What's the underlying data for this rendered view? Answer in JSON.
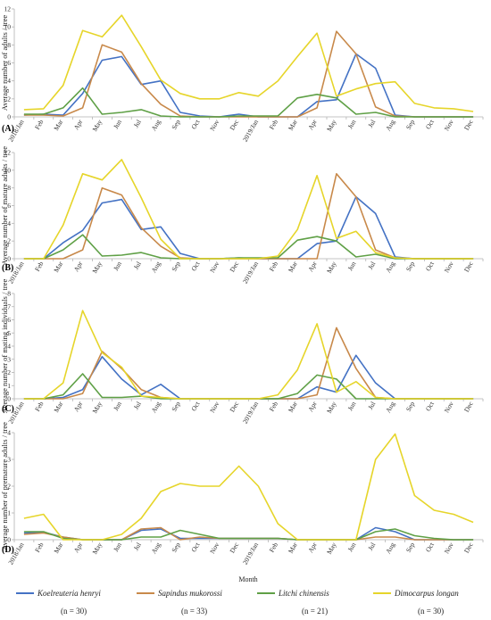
{
  "colors": {
    "koelreuteria": "#4472C4",
    "sapindus": "#C8894A",
    "litchi": "#5FA046",
    "dimocarpus": "#E6D52A",
    "axis": "#b3b3b3"
  },
  "months": [
    "2018/Jan",
    "Feb",
    "Mar",
    "Apr",
    "May",
    "Jun",
    "Jul",
    "Aug",
    "Sep",
    "Oct",
    "Nov",
    "Dec",
    "2019/Jan",
    "Feb",
    "Mar",
    "Apr",
    "May",
    "Jun",
    "Jul",
    "Aug",
    "Sep",
    "Oct",
    "Nov",
    "Dec"
  ],
  "xaxis_title": "Month",
  "legend": [
    {
      "name": "Koelreuteria henryi",
      "n": "(n = 30)",
      "color_key": "koelreuteria"
    },
    {
      "name": "Sapindus mukorossi",
      "n": "(n = 33)",
      "color_key": "sapindus"
    },
    {
      "name": "Litchi chinensis",
      "n": "(n = 21)",
      "color_key": "litchi"
    },
    {
      "name": "Dimocarpus longan",
      "n": "(n = 30)",
      "color_key": "dimocarpus"
    }
  ],
  "chart_data": [
    {
      "type": "line",
      "panel": "(A)",
      "ylabel": "Average number of adults / tree",
      "ylim": [
        0,
        12
      ],
      "yticks": [
        0,
        2,
        4,
        6,
        8,
        10,
        12
      ],
      "grid": false,
      "series": [
        {
          "name": "Koelreuteria henryi",
          "color_key": "koelreuteria",
          "values": [
            0.2,
            0.3,
            0.2,
            2.6,
            6.3,
            6.7,
            3.6,
            4.0,
            0.5,
            0.1,
            0.0,
            0.3,
            0.0,
            0.0,
            0.0,
            1.7,
            1.9,
            7.0,
            5.4,
            0.2,
            0.0,
            0.0,
            0.0,
            0.0
          ]
        },
        {
          "name": "Sapindus mukorossi",
          "color_key": "sapindus",
          "values": [
            0.2,
            0.2,
            0.1,
            1.0,
            8.0,
            7.2,
            3.7,
            1.4,
            0.1,
            0.0,
            0.0,
            0.0,
            0.0,
            0.0,
            0.0,
            1.0,
            9.5,
            7.0,
            1.1,
            0.1,
            0.0,
            0.0,
            0.0,
            0.0
          ]
        },
        {
          "name": "Litchi chinensis",
          "color_key": "litchi",
          "values": [
            0.3,
            0.3,
            1.0,
            3.2,
            0.3,
            0.5,
            0.8,
            0.1,
            0.0,
            0.0,
            0.0,
            0.1,
            0.1,
            0.1,
            2.1,
            2.5,
            2.1,
            0.3,
            0.5,
            0.0,
            0.0,
            0.0,
            0.0,
            0.0
          ]
        },
        {
          "name": "Dimocarpus longan",
          "color_key": "dimocarpus",
          "values": [
            0.8,
            0.9,
            3.5,
            9.6,
            8.9,
            11.3,
            7.8,
            4.1,
            2.6,
            2.0,
            2.0,
            2.7,
            2.3,
            4.0,
            6.7,
            9.3,
            2.3,
            3.1,
            3.7,
            3.9,
            1.5,
            1.0,
            0.9,
            0.6
          ]
        }
      ]
    },
    {
      "type": "line",
      "panel": "(B)",
      "ylabel": "Average number of mature adults / tree",
      "ylim": [
        0,
        12
      ],
      "yticks": [
        0,
        2,
        4,
        6,
        8,
        10,
        12
      ],
      "grid": false,
      "series": [
        {
          "name": "Koelreuteria henryi",
          "color_key": "koelreuteria",
          "values": [
            0.0,
            0.0,
            1.8,
            3.2,
            6.3,
            6.7,
            3.3,
            3.6,
            0.6,
            0.0,
            0.0,
            0.1,
            0.0,
            0.0,
            0.0,
            1.7,
            2.0,
            7.0,
            5.1,
            0.2,
            0.0,
            0.0,
            0.0,
            0.0
          ]
        },
        {
          "name": "Sapindus mukorossi",
          "color_key": "sapindus",
          "values": [
            0.0,
            0.0,
            0.0,
            1.0,
            8.0,
            7.2,
            3.5,
            1.4,
            0.1,
            0.0,
            0.0,
            0.0,
            0.0,
            0.0,
            0.0,
            0.0,
            9.6,
            7.0,
            1.0,
            0.1,
            0.0,
            0.0,
            0.0,
            0.0
          ]
        },
        {
          "name": "Litchi chinensis",
          "color_key": "litchi",
          "values": [
            0.0,
            0.0,
            1.0,
            2.7,
            0.3,
            0.4,
            0.7,
            0.1,
            0.0,
            0.0,
            0.0,
            0.1,
            0.1,
            0.1,
            2.1,
            2.5,
            2.0,
            0.2,
            0.5,
            0.0,
            0.0,
            0.0,
            0.0,
            0.0
          ]
        },
        {
          "name": "Dimocarpus longan",
          "color_key": "dimocarpus",
          "values": [
            0.0,
            0.0,
            3.8,
            9.6,
            8.9,
            11.2,
            6.9,
            2.2,
            0.0,
            0.0,
            0.0,
            0.0,
            0.0,
            0.3,
            3.3,
            9.4,
            2.3,
            3.1,
            0.7,
            0.1,
            0.0,
            0.0,
            0.0,
            0.0
          ]
        }
      ]
    },
    {
      "type": "line",
      "panel": "(C)",
      "ylabel": "Average number of mating individuals / tree",
      "ylim": [
        0,
        8
      ],
      "yticks": [
        0,
        1,
        2,
        3,
        4,
        5,
        6,
        7,
        8
      ],
      "grid": false,
      "series": [
        {
          "name": "Koelreuteria henryi",
          "color_key": "koelreuteria",
          "values": [
            0.0,
            0.0,
            0.1,
            0.7,
            3.2,
            1.5,
            0.3,
            1.1,
            0.0,
            0.0,
            0.0,
            0.0,
            0.0,
            0.0,
            0.0,
            0.9,
            0.5,
            3.3,
            1.2,
            0.0,
            0.0,
            0.0,
            0.0,
            0.0
          ]
        },
        {
          "name": "Sapindus mukorossi",
          "color_key": "sapindus",
          "values": [
            0.0,
            0.0,
            0.0,
            0.4,
            3.6,
            2.3,
            0.7,
            0.1,
            0.0,
            0.0,
            0.0,
            0.0,
            0.0,
            0.0,
            0.0,
            0.3,
            5.4,
            2.3,
            0.1,
            0.0,
            0.0,
            0.0,
            0.0,
            0.0
          ]
        },
        {
          "name": "Litchi chinensis",
          "color_key": "litchi",
          "values": [
            0.0,
            0.0,
            0.3,
            1.9,
            0.1,
            0.1,
            0.2,
            0.0,
            0.0,
            0.0,
            0.0,
            0.0,
            0.0,
            0.0,
            0.4,
            1.8,
            1.5,
            0.0,
            0.0,
            0.0,
            0.0,
            0.0,
            0.0,
            0.0
          ]
        },
        {
          "name": "Dimocarpus longan",
          "color_key": "dimocarpus",
          "values": [
            0.0,
            0.0,
            1.2,
            6.7,
            3.5,
            2.4,
            0.2,
            0.1,
            0.0,
            0.0,
            0.0,
            0.0,
            0.0,
            0.3,
            2.2,
            5.7,
            0.5,
            1.3,
            0.1,
            0.0,
            0.0,
            0.0,
            0.0,
            0.0
          ]
        }
      ]
    },
    {
      "type": "line",
      "panel": "(D)",
      "ylabel": "Average number of premature adults / tree",
      "ylim": [
        0,
        4
      ],
      "yticks": [
        0,
        1,
        2,
        3,
        4
      ],
      "grid": false,
      "series": [
        {
          "name": "Koelreuteria henryi",
          "color_key": "koelreuteria",
          "values": [
            0.25,
            0.28,
            0.1,
            0.0,
            0.0,
            0.0,
            0.35,
            0.4,
            0.05,
            0.05,
            0.05,
            0.05,
            0.05,
            0.05,
            0.0,
            0.0,
            0.0,
            0.0,
            0.45,
            0.3,
            0.0,
            0.0,
            0.0,
            0.0
          ]
        },
        {
          "name": "Sapindus mukorossi",
          "color_key": "sapindus",
          "values": [
            0.2,
            0.25,
            0.1,
            0.0,
            0.0,
            0.0,
            0.4,
            0.45,
            0.0,
            0.1,
            0.05,
            0.05,
            0.05,
            0.05,
            0.0,
            0.0,
            0.0,
            0.0,
            0.1,
            0.1,
            0.0,
            0.0,
            0.0,
            0.0
          ]
        },
        {
          "name": "Litchi chinensis",
          "color_key": "litchi",
          "values": [
            0.3,
            0.3,
            0.05,
            0.0,
            0.0,
            0.0,
            0.1,
            0.1,
            0.35,
            0.2,
            0.05,
            0.05,
            0.05,
            0.05,
            0.0,
            0.0,
            0.0,
            0.0,
            0.3,
            0.4,
            0.15,
            0.05,
            0.0,
            0.0
          ]
        },
        {
          "name": "Dimocarpus longan",
          "color_key": "dimocarpus",
          "values": [
            0.8,
            0.95,
            0.0,
            0.0,
            0.0,
            0.2,
            0.8,
            1.8,
            2.1,
            2.0,
            2.0,
            2.75,
            2.0,
            0.6,
            0.0,
            0.0,
            0.0,
            0.0,
            3.0,
            3.95,
            1.65,
            1.1,
            0.95,
            0.65
          ]
        }
      ]
    }
  ]
}
